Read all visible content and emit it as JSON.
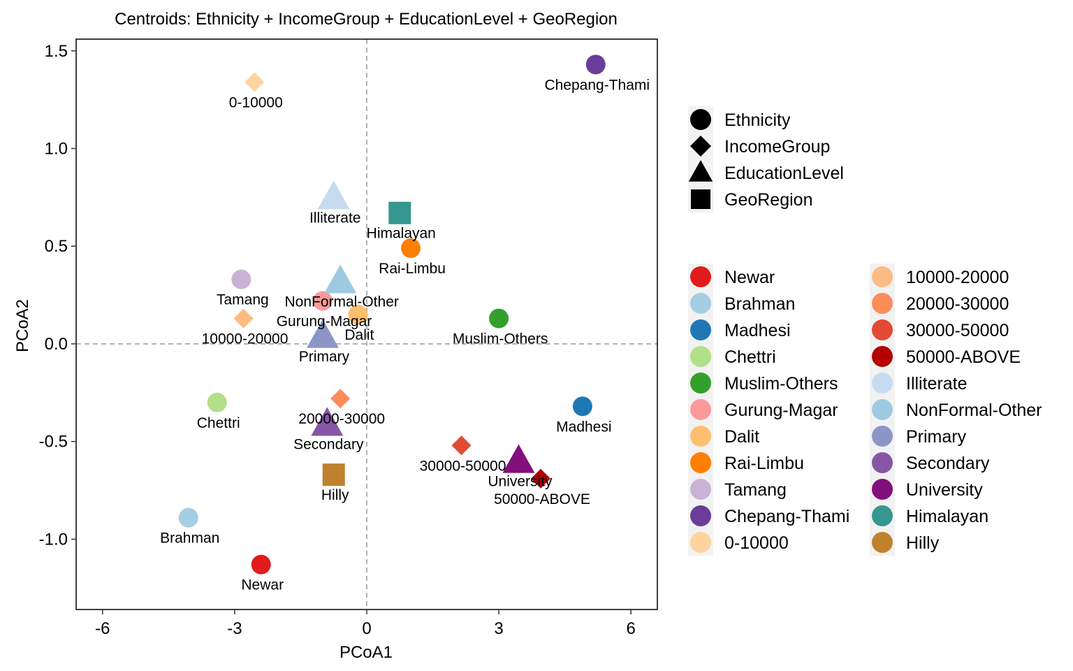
{
  "chart_data": {
    "type": "scatter",
    "title": "Centroids: Ethnicity + IncomeGroup + EducationLevel + GeoRegion",
    "xlabel": "PCoA1",
    "ylabel": "PCoA2",
    "xlim": [
      -6.6,
      6.6
    ],
    "ylim": [
      -1.36,
      1.56
    ],
    "xticks": [
      -6,
      -3,
      0,
      3,
      6
    ],
    "xtick_labels": [
      "-6",
      "-3",
      "0",
      "3",
      "6"
    ],
    "yticks": [
      -1.0,
      -0.5,
      0.0,
      0.5,
      1.0,
      1.5
    ],
    "ytick_labels": [
      "-1.0",
      "-0.5",
      "0.0",
      "0.5",
      "1.0",
      "1.5"
    ],
    "reference_lines": {
      "x": 0,
      "y": 0
    },
    "grid": false,
    "legend_placement": "right",
    "shape_legend": [
      {
        "label": "Ethnicity",
        "shape": "circle"
      },
      {
        "label": "IncomeGroup",
        "shape": "diamond"
      },
      {
        "label": "EducationLevel",
        "shape": "triangle"
      },
      {
        "label": "GeoRegion",
        "shape": "square"
      }
    ],
    "points": [
      {
        "label": "Newar",
        "group": "Ethnicity",
        "x": -2.4,
        "y": -1.13,
        "color": "#e31a1c"
      },
      {
        "label": "Brahman",
        "group": "Ethnicity",
        "x": -4.05,
        "y": -0.89,
        "color": "#a6cee3"
      },
      {
        "label": "Madhesi",
        "group": "Ethnicity",
        "x": 4.9,
        "y": -0.32,
        "color": "#1f78b4"
      },
      {
        "label": "Chettri",
        "group": "Ethnicity",
        "x": -3.4,
        "y": -0.3,
        "color": "#b2df8a"
      },
      {
        "label": "Muslim-Others",
        "group": "Ethnicity",
        "x": 3.0,
        "y": 0.13,
        "color": "#33a02c"
      },
      {
        "label": "Gurung-Magar",
        "group": "Ethnicity",
        "x": -1.0,
        "y": 0.22,
        "color": "#fb9a99"
      },
      {
        "label": "Dalit",
        "group": "Ethnicity",
        "x": -0.2,
        "y": 0.15,
        "color": "#fdbf6f"
      },
      {
        "label": "Rai-Limbu",
        "group": "Ethnicity",
        "x": 1.0,
        "y": 0.49,
        "color": "#ff7f00"
      },
      {
        "label": "Tamang",
        "group": "Ethnicity",
        "x": -2.85,
        "y": 0.33,
        "color": "#cab2d6"
      },
      {
        "label": "Chepang-Thami",
        "group": "Ethnicity",
        "x": 5.2,
        "y": 1.43,
        "color": "#6a3d9a"
      },
      {
        "label": "0-10000",
        "group": "IncomeGroup",
        "x": -2.55,
        "y": 1.34,
        "color": "#fdd49e"
      },
      {
        "label": "10000-20000",
        "group": "IncomeGroup",
        "x": -2.8,
        "y": 0.13,
        "color": "#fdbb84"
      },
      {
        "label": "20000-30000",
        "group": "IncomeGroup",
        "x": -0.6,
        "y": -0.28,
        "color": "#fc8d59"
      },
      {
        "label": "30000-50000",
        "group": "IncomeGroup",
        "x": 2.15,
        "y": -0.52,
        "color": "#e34a33"
      },
      {
        "label": "50000-ABOVE",
        "group": "IncomeGroup",
        "x": 3.95,
        "y": -0.69,
        "color": "#b30000"
      },
      {
        "label": "Illiterate",
        "group": "EducationLevel",
        "x": -0.75,
        "y": 0.75,
        "color": "#c6dbef"
      },
      {
        "label": "NonFormal-Other",
        "group": "EducationLevel",
        "x": -0.6,
        "y": 0.32,
        "color": "#9ecae1"
      },
      {
        "label": "Primary",
        "group": "EducationLevel",
        "x": -1.0,
        "y": 0.04,
        "color": "#8c96c6"
      },
      {
        "label": "Secondary",
        "group": "EducationLevel",
        "x": -0.9,
        "y": -0.41,
        "color": "#8856a7"
      },
      {
        "label": "University",
        "group": "EducationLevel",
        "x": 3.45,
        "y": -0.6,
        "color": "#810f7c"
      },
      {
        "label": "Himalayan",
        "group": "GeoRegion",
        "x": 0.75,
        "y": 0.67,
        "color": "#35978f"
      },
      {
        "label": "Hilly",
        "group": "GeoRegion",
        "x": -0.75,
        "y": -0.67,
        "color": "#bf812d"
      }
    ],
    "color_legend": [
      {
        "label": "Newar",
        "color": "#e31a1c"
      },
      {
        "label": "Brahman",
        "color": "#a6cee3"
      },
      {
        "label": "Madhesi",
        "color": "#1f78b4"
      },
      {
        "label": "Chettri",
        "color": "#b2df8a"
      },
      {
        "label": "Muslim-Others",
        "color": "#33a02c"
      },
      {
        "label": "Gurung-Magar",
        "color": "#fb9a99"
      },
      {
        "label": "Dalit",
        "color": "#fdbf6f"
      },
      {
        "label": "Rai-Limbu",
        "color": "#ff7f00"
      },
      {
        "label": "Tamang",
        "color": "#cab2d6"
      },
      {
        "label": "Chepang-Thami",
        "color": "#6a3d9a"
      },
      {
        "label": "0-10000",
        "color": "#fdd49e"
      },
      {
        "label": "10000-20000",
        "color": "#fdbb84"
      },
      {
        "label": "20000-30000",
        "color": "#fc8d59"
      },
      {
        "label": "30000-50000",
        "color": "#e34a33"
      },
      {
        "label": "50000-ABOVE",
        "color": "#b30000"
      },
      {
        "label": "Illiterate",
        "color": "#c6dbef"
      },
      {
        "label": "NonFormal-Other",
        "color": "#9ecae1"
      },
      {
        "label": "Primary",
        "color": "#8c96c6"
      },
      {
        "label": "Secondary",
        "color": "#8856a7"
      },
      {
        "label": "University",
        "color": "#810f7c"
      },
      {
        "label": "Himalayan",
        "color": "#35978f"
      },
      {
        "label": "Hilly",
        "color": "#bf812d"
      }
    ]
  }
}
